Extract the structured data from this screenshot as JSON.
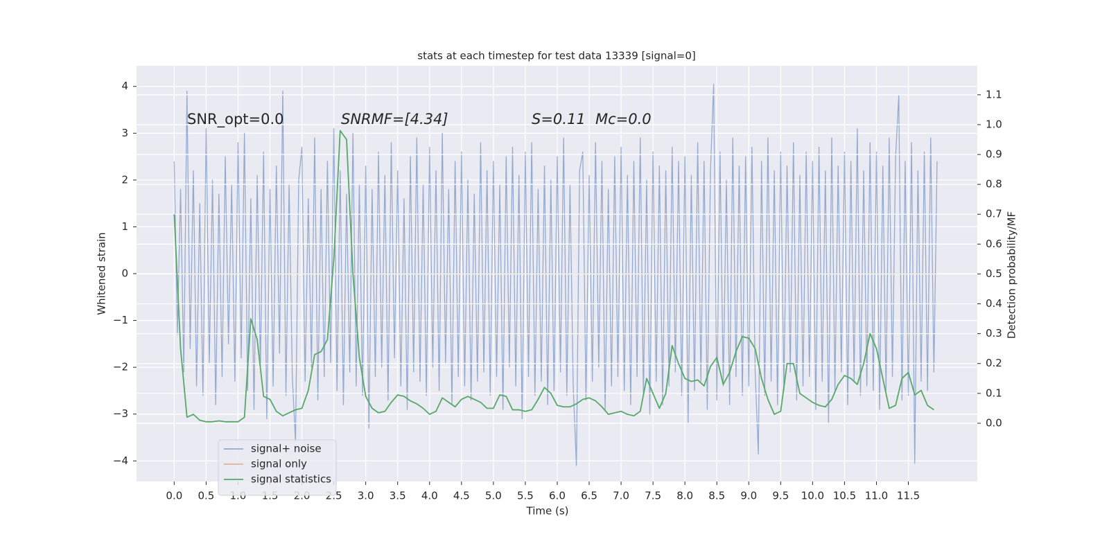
{
  "chart_data": {
    "type": "line",
    "title": "stats at each timestep for test data 13339 [signal=0]",
    "xlabel": "Time (s)",
    "ylabel": "Whitened strain",
    "y2label": "Detection probability/MF",
    "annotations": [
      "SNR_opt=0.0",
      "SNRMF=[4.34]",
      "S=0.11",
      "Mc=0.0"
    ],
    "xlim": [
      -0.59,
      12.58
    ],
    "ylim": [
      -4.44,
      4.44
    ],
    "y2lim": [
      -0.195,
      1.197
    ],
    "xticks": [
      {
        "value": 0,
        "label": "0.0"
      },
      0.5,
      {
        "value": 1,
        "label": "1.0"
      },
      1.5,
      {
        "value": 2,
        "label": "2.0"
      },
      2.5,
      {
        "value": 3,
        "label": "3.0"
      },
      3.5,
      {
        "value": 4,
        "label": "4.0"
      },
      4.5,
      {
        "value": 5,
        "label": "5.0"
      },
      5.5,
      {
        "value": 6,
        "label": "6.0"
      },
      6.5,
      {
        "value": 7,
        "label": "7.0"
      },
      7.5,
      {
        "value": 8,
        "label": "8.0"
      },
      8.5,
      {
        "value": 9,
        "label": "9.0"
      },
      9.5,
      {
        "value": 10,
        "label": "10.0"
      },
      10.5,
      {
        "value": 11,
        "label": "11.0"
      },
      11.5
    ],
    "yticks": [
      {
        "value": -4,
        "label": "−4"
      },
      {
        "value": -3,
        "label": "−3"
      },
      {
        "value": -2,
        "label": "−2"
      },
      {
        "value": -1,
        "label": "−1"
      },
      0,
      1,
      2,
      3,
      4
    ],
    "y2ticks": [
      {
        "value": 0,
        "label": "0.0"
      },
      0.1,
      0.2,
      0.3,
      0.4,
      0.5,
      0.6,
      0.7,
      0.8,
      0.9,
      {
        "value": 1,
        "label": "1.0"
      },
      1.1
    ],
    "grid": true,
    "legend": "lower left",
    "series": [
      {
        "name": "signal+ noise",
        "color": "#4c72b0",
        "x": [
          0,
          0.05,
          0.1,
          0.15,
          0.2,
          0.25,
          0.3,
          0.35,
          0.4,
          0.45,
          0.5,
          0.55,
          0.6,
          0.65,
          0.7,
          0.75,
          0.8,
          0.85,
          0.9,
          0.95,
          1,
          1.05,
          1.1,
          1.15,
          1.2,
          1.25,
          1.3,
          1.35,
          1.4,
          1.45,
          1.5,
          1.55,
          1.6,
          1.65,
          1.7,
          1.75,
          1.8,
          1.85,
          1.9,
          1.95,
          2,
          2.05,
          2.1,
          2.15,
          2.2,
          2.25,
          2.3,
          2.35,
          2.4,
          2.45,
          2.5,
          2.55,
          2.6,
          2.65,
          2.7,
          2.75,
          2.8,
          2.85,
          2.9,
          2.95,
          3,
          3.05,
          3.1,
          3.15,
          3.2,
          3.25,
          3.3,
          3.35,
          3.4,
          3.45,
          3.5,
          3.55,
          3.6,
          3.65,
          3.7,
          3.75,
          3.8,
          3.85,
          3.9,
          3.95,
          4,
          4.05,
          4.1,
          4.15,
          4.2,
          4.25,
          4.3,
          4.35,
          4.4,
          4.45,
          4.5,
          4.55,
          4.6,
          4.65,
          4.7,
          4.75,
          4.8,
          4.85,
          4.9,
          4.95,
          5,
          5.05,
          5.1,
          5.15,
          5.2,
          5.25,
          5.3,
          5.35,
          5.4,
          5.45,
          5.5,
          5.55,
          5.6,
          5.65,
          5.7,
          5.75,
          5.8,
          5.85,
          5.9,
          5.95,
          6,
          6.05,
          6.1,
          6.15,
          6.2,
          6.25,
          6.3,
          6.35,
          6.4,
          6.45,
          6.5,
          6.55,
          6.6,
          6.65,
          6.7,
          6.75,
          6.8,
          6.85,
          6.9,
          6.95,
          7,
          7.05,
          7.1,
          7.15,
          7.2,
          7.25,
          7.3,
          7.35,
          7.4,
          7.45,
          7.5,
          7.55,
          7.6,
          7.65,
          7.7,
          7.75,
          7.8,
          7.85,
          7.9,
          7.95,
          8,
          8.05,
          8.1,
          8.15,
          8.2,
          8.25,
          8.3,
          8.35,
          8.4,
          8.45,
          8.5,
          8.55,
          8.6,
          8.65,
          8.7,
          8.75,
          8.8,
          8.85,
          8.9,
          8.95,
          9,
          9.05,
          9.1,
          9.15,
          9.2,
          9.25,
          9.3,
          9.35,
          9.4,
          9.45,
          9.5,
          9.55,
          9.6,
          9.65,
          9.7,
          9.75,
          9.8,
          9.85,
          9.9,
          9.95,
          10,
          10.05,
          10.1,
          10.15,
          10.2,
          10.25,
          10.3,
          10.35,
          10.4,
          10.45,
          10.5,
          10.55,
          10.6,
          10.65,
          10.7,
          10.75,
          10.8,
          10.85,
          10.9,
          10.95,
          11,
          11.05,
          11.1,
          11.15,
          11.2,
          11.25,
          11.3,
          11.35,
          11.4,
          11.45,
          11.5,
          11.55,
          11.6,
          11.65,
          11.7,
          11.75,
          11.8,
          11.85,
          11.9,
          11.95
        ],
        "values": [
          2.4,
          -1.3,
          1.8,
          -2.1,
          3.9,
          -1.6,
          2.2,
          -2.4,
          1.5,
          -2.6,
          3.1,
          -1.9,
          2.0,
          -2.8,
          1.7,
          -2.2,
          2.5,
          -1.5,
          1.9,
          -2.3,
          2.8,
          -1.8,
          3.0,
          -2.5,
          1.6,
          -2.9,
          2.1,
          -2.0,
          2.6,
          -3.1,
          1.8,
          -2.4,
          2.3,
          -1.7,
          3.9,
          -2.6,
          1.9,
          -2.2,
          -3.6,
          2.0,
          2.7,
          -2.3,
          1.6,
          -2.0,
          2.9,
          -2.7,
          1.8,
          -2.2,
          2.4,
          -1.9,
          3.1,
          -2.5,
          2.2,
          -2.8,
          1.7,
          -2.1,
          3.0,
          -2.4,
          1.9,
          -2.6,
          2.3,
          -3.3,
          1.8,
          -2.2,
          2.6,
          -2.0,
          2.1,
          -2.7,
          2.8,
          -1.8,
          2.2,
          -2.4,
          1.6,
          -2.9,
          2.5,
          -2.1,
          2.9,
          -2.3,
          1.9,
          -2.6,
          2.7,
          -2.0,
          2.2,
          -2.5,
          3.0,
          -1.9,
          1.8,
          -2.8,
          2.4,
          -2.2,
          2.6,
          -2.4,
          2.0,
          -2.7,
          1.7,
          -2.3,
          2.8,
          -2.1,
          2.2,
          -2.6,
          2.4,
          -2.2,
          1.9,
          -2.9,
          2.5,
          -2.0,
          2.7,
          -2.4,
          2.1,
          -3.1,
          2.6,
          -2.2,
          2.8,
          -2.6,
          1.8,
          -2.3,
          2.3,
          -2.8,
          2.0,
          -2.5,
          2.5,
          -2.1,
          2.9,
          -2.6,
          1.9,
          -2.4,
          -4.1,
          2.2,
          2.6,
          -2.7,
          2.1,
          -2.3,
          2.8,
          -2.0,
          2.4,
          -2.9,
          1.8,
          -2.4,
          2.5,
          -2.2,
          2.7,
          -2.5,
          2.1,
          -2.8,
          2.4,
          -2.2,
          2.9,
          -2.6,
          2.0,
          -3.0,
          2.6,
          -2.3,
          2.3,
          -2.8,
          2.2,
          -2.4,
          2.7,
          -2.1,
          2.4,
          -2.6,
          2.5,
          -3.2,
          2.1,
          -2.5,
          2.8,
          -2.3,
          2.4,
          -2.9,
          2.2,
          4.05,
          -2.7,
          2.6,
          -2.4,
          2.0,
          -2.8,
          2.9,
          -2.2,
          2.3,
          -2.6,
          2.5,
          -2.4,
          2.7,
          -2.1,
          -3.85,
          2.4,
          -2.6,
          2.9,
          -2.3,
          2.2,
          -2.8,
          2.6,
          -2.5,
          2.3,
          -2.1,
          2.8,
          -2.7,
          2.1,
          -2.4,
          2.6,
          -2.2,
          2.4,
          -2.9,
          2.7,
          -2.3,
          2.2,
          -3.2,
          2.9,
          -2.5,
          2.3,
          -2.1,
          2.6,
          -2.8,
          2.4,
          -2.3,
          3.1,
          -2.6,
          2.2,
          -2.4,
          2.8,
          -2.5,
          2.6,
          -2.9,
          2.3,
          -2.5,
          2.9,
          -2.2,
          2.5,
          3.8,
          -2.7,
          2.4,
          -2.6,
          2.8,
          -4.05,
          2.2,
          -2.3,
          2.6,
          -2.5,
          2.9,
          -2.1,
          2.4
        ]
      },
      {
        "name": "signal only",
        "color": "#dd8452",
        "x": [
          0,
          11.95
        ],
        "values": [
          0,
          0
        ]
      },
      {
        "name": "signal statistics",
        "color": "#55a868",
        "axis": "y2",
        "x": [
          0,
          0.1,
          0.2,
          0.3,
          0.4,
          0.5,
          0.6,
          0.7,
          0.8,
          0.9,
          1,
          1.1,
          1.2,
          1.3,
          1.4,
          1.5,
          1.6,
          1.7,
          1.8,
          1.9,
          2,
          2.1,
          2.2,
          2.3,
          2.4,
          2.5,
          2.6,
          2.7,
          2.8,
          2.9,
          3,
          3.1,
          3.2,
          3.3,
          3.4,
          3.5,
          3.6,
          3.7,
          3.8,
          3.9,
          4,
          4.1,
          4.2,
          4.3,
          4.4,
          4.5,
          4.6,
          4.7,
          4.8,
          4.9,
          5,
          5.1,
          5.2,
          5.3,
          5.4,
          5.5,
          5.6,
          5.7,
          5.8,
          5.9,
          6,
          6.1,
          6.2,
          6.3,
          6.4,
          6.5,
          6.6,
          6.7,
          6.8,
          6.9,
          7,
          7.1,
          7.2,
          7.3,
          7.4,
          7.5,
          7.6,
          7.7,
          7.8,
          7.9,
          8,
          8.1,
          8.2,
          8.3,
          8.4,
          8.5,
          8.6,
          8.7,
          8.8,
          8.9,
          9,
          9.1,
          9.2,
          9.3,
          9.4,
          9.5,
          9.6,
          9.7,
          9.8,
          9.9,
          10,
          10.1,
          10.2,
          10.3,
          10.4,
          10.5,
          10.6,
          10.7,
          10.8,
          10.9,
          11,
          11.1,
          11.2,
          11.3,
          11.4,
          11.5,
          11.6,
          11.7,
          11.8,
          11.9
        ],
        "values": [
          0.7,
          0.25,
          0.02,
          0.03,
          0.01,
          0.005,
          0.005,
          0.008,
          0.005,
          0.005,
          0.005,
          0.02,
          0.35,
          0.28,
          0.09,
          0.08,
          0.04,
          0.025,
          0.035,
          0.045,
          0.05,
          0.11,
          0.23,
          0.24,
          0.28,
          0.55,
          0.98,
          0.95,
          0.5,
          0.22,
          0.09,
          0.05,
          0.035,
          0.04,
          0.07,
          0.095,
          0.09,
          0.075,
          0.065,
          0.05,
          0.03,
          0.04,
          0.085,
          0.07,
          0.055,
          0.08,
          0.09,
          0.08,
          0.07,
          0.05,
          0.05,
          0.095,
          0.09,
          0.045,
          0.045,
          0.04,
          0.045,
          0.08,
          0.12,
          0.1,
          0.06,
          0.055,
          0.055,
          0.065,
          0.08,
          0.085,
          0.075,
          0.055,
          0.03,
          0.035,
          0.04,
          0.03,
          0.025,
          0.04,
          0.15,
          0.1,
          0.05,
          0.1,
          0.26,
          0.2,
          0.15,
          0.14,
          0.145,
          0.125,
          0.19,
          0.22,
          0.13,
          0.17,
          0.24,
          0.29,
          0.285,
          0.25,
          0.15,
          0.08,
          0.03,
          0.04,
          0.2,
          0.2,
          0.1,
          0.085,
          0.07,
          0.06,
          0.055,
          0.08,
          0.13,
          0.16,
          0.15,
          0.13,
          0.2,
          0.3,
          0.25,
          0.15,
          0.05,
          0.06,
          0.15,
          0.17,
          0.095,
          0.11,
          0.06,
          0.045
        ]
      }
    ]
  }
}
